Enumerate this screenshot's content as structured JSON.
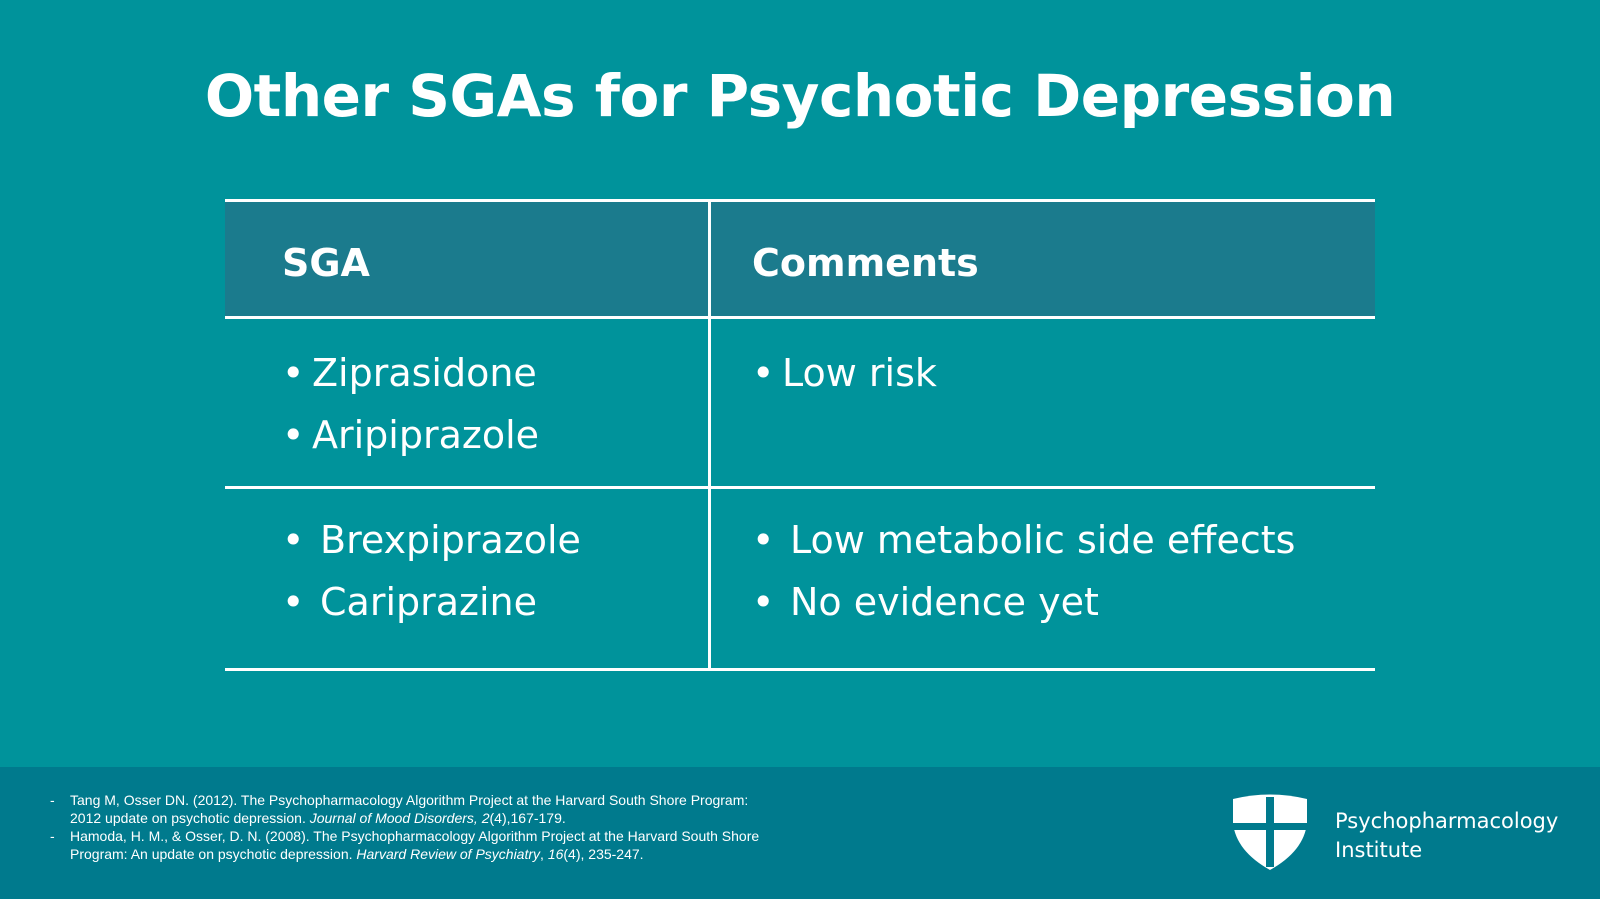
{
  "slide": {
    "title": "Other SGAs for Psychotic Depression"
  },
  "table": {
    "headers": [
      "SGA",
      "Comments"
    ],
    "rows": [
      {
        "sga": [
          "Ziprasidone",
          "Aripiprazole"
        ],
        "comments": [
          "Low risk"
        ]
      },
      {
        "sga": [
          "Brexpiprazole",
          "Cariprazine"
        ],
        "comments": [
          "Low metabolic side effects",
          "No evidence yet"
        ]
      }
    ],
    "bullet": "•"
  },
  "footer": {
    "references": [
      {
        "dash": "-",
        "pre": "Tang M, Osser DN. (2012). The Psychopharmacology Algorithm Project at the Harvard South Shore Program: 2012 update on psychotic depression. ",
        "journal": "Journal of Mood Disorders, 2",
        "post": "(4),167-179."
      },
      {
        "dash": "-",
        "pre": "Hamoda, H. M., & Osser, D. N. (2008). The Psychopharmacology Algorithm Project at the Harvard South Shore Program: An update on psychotic depression. ",
        "journal": "Harvard Review of Psychiatry",
        "mid": ", ",
        "volume": "16",
        "post": "(4), 235-247."
      }
    ],
    "logo": {
      "line1": "Psychopharmacology",
      "line2": "Institute",
      "icon": "shield-cross-icon"
    }
  },
  "colors": {
    "background": "#00939b",
    "header": "#1b7b8d",
    "footer": "#007a8d"
  }
}
